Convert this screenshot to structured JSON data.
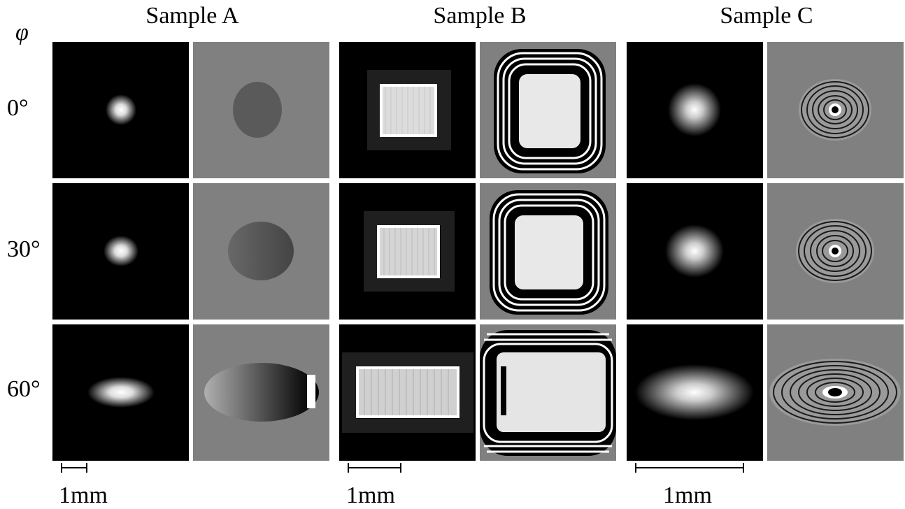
{
  "header": {
    "phi_symbol": "φ",
    "samples": [
      "Sample A",
      "Sample B",
      "Sample C"
    ]
  },
  "rows": [
    {
      "angle": "0°"
    },
    {
      "angle": "30°"
    },
    {
      "angle": "60°"
    }
  ],
  "scale_bars": [
    {
      "label": "1mm"
    },
    {
      "label": "1mm"
    },
    {
      "label": "1mm"
    }
  ]
}
